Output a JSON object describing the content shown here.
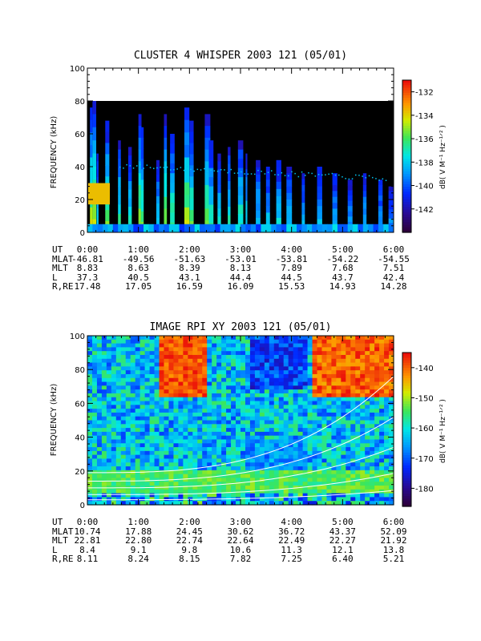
{
  "chart_data": [
    {
      "type": "heatmap",
      "title": "CLUSTER 4 WHISPER 2003 121 (05/01)",
      "ylabel": "FREQUENCY (kHz)",
      "ylim": [
        0,
        100
      ],
      "y_ticks": [
        "0",
        "20",
        "40",
        "60",
        "80",
        "100"
      ],
      "x_ticks": [
        "0:00",
        "1:00",
        "2:00",
        "3:00",
        "4:00",
        "5:00",
        "6:00"
      ],
      "data_ceiling_khz": 80,
      "colorbar": {
        "label": "dB( V M⁻¹ Hz⁻¹ᐟ² )",
        "ticks": [
          "-132",
          "-134",
          "-136",
          "-138",
          "-140",
          "-142"
        ],
        "min": -144,
        "max": -131
      },
      "ephemeris": {
        "labels": [
          "UT",
          "MLAT",
          "MLT",
          "L",
          "R,RE"
        ],
        "rows": [
          [
            "0:00",
            "1:00",
            "2:00",
            "3:00",
            "4:00",
            "5:00",
            "6:00"
          ],
          [
            "-46.81",
            "-49.56",
            "-51.63",
            "-53.01",
            "-53.81",
            "-54.22",
            "-54.55"
          ],
          [
            "8.83",
            "8.63",
            "8.39",
            "8.13",
            "7.89",
            "7.68",
            "7.51"
          ],
          [
            "37.3",
            "40.5",
            "43.1",
            "44.4",
            "44.5",
            "43.7",
            "42.4"
          ],
          [
            "17.48",
            "17.05",
            "16.59",
            "16.09",
            "15.53",
            "14.93",
            "14.28"
          ]
        ]
      },
      "colors": {
        "background": "#000000"
      }
    },
    {
      "type": "heatmap",
      "title": "IMAGE RPI XY 2003 121 (05/01)",
      "ylabel": "FREQUENCY (kHz)",
      "ylim": [
        0,
        100
      ],
      "y_ticks": [
        "0",
        "20",
        "40",
        "60",
        "80",
        "100"
      ],
      "x_ticks": [
        "0:00",
        "1:00",
        "2:00",
        "3:00",
        "4:00",
        "5:00",
        "6:00"
      ],
      "colorbar": {
        "label": "dB( V M⁻¹ Hz⁻¹ᐟ² )",
        "ticks": [
          "-140",
          "-150",
          "-160",
          "-170",
          "-180"
        ],
        "min": -186,
        "max": -135
      },
      "ephemeris": {
        "labels": [
          "UT",
          "MLAT",
          "MLT",
          "L",
          "R,RE"
        ],
        "rows": [
          [
            "0:00",
            "1:00",
            "2:00",
            "3:00",
            "4:00",
            "5:00",
            "6:00"
          ],
          [
            "10.74",
            "17.88",
            "24.45",
            "30.62",
            "36.72",
            "43.37",
            "52.09"
          ],
          [
            "22.81",
            "22.80",
            "22.74",
            "22.64",
            "22.49",
            "22.27",
            "21.92"
          ],
          [
            "8.4",
            "9.1",
            "9.8",
            "10.6",
            "11.3",
            "12.1",
            "13.8"
          ],
          [
            "8.11",
            "8.24",
            "8.15",
            "7.82",
            "7.25",
            "6.40",
            "5.21"
          ]
        ]
      },
      "colors": {
        "overlay_lines": "#ffffff"
      }
    }
  ]
}
